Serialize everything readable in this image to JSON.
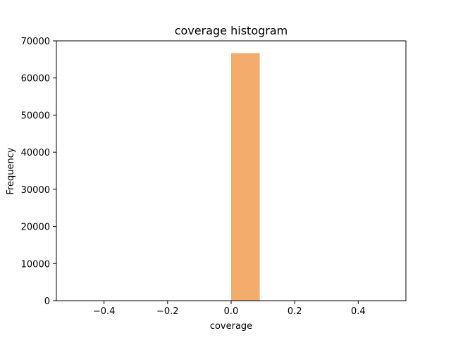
{
  "chart_data": {
    "type": "bar",
    "title": "coverage histogram",
    "xlabel": "coverage",
    "ylabel": "Frequency",
    "xlim": [
      -0.55,
      0.55
    ],
    "ylim": [
      0,
      70000
    ],
    "x_ticks": [
      -0.4,
      -0.2,
      0.0,
      0.2,
      0.4
    ],
    "y_ticks": [
      0,
      10000,
      20000,
      30000,
      40000,
      50000,
      60000,
      70000
    ],
    "grid": false,
    "legend": "none",
    "bar_color": "#f4ac6c",
    "bars": [
      {
        "x_start": 0.0,
        "x_end": 0.09,
        "value": 66700
      }
    ]
  }
}
